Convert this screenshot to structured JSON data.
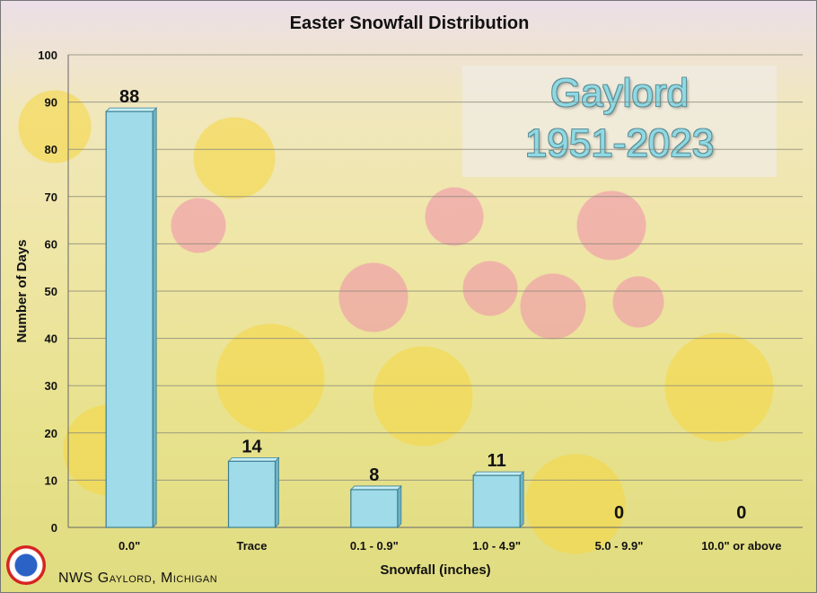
{
  "chart_data": {
    "type": "bar",
    "title": "Easter Snowfall Distribution",
    "xlabel": "Snowfall (inches)",
    "ylabel": "Number of Days",
    "categories": [
      "0.0\"",
      "Trace",
      "0.1 - 0.9\"",
      "1.0 - 4.9\"",
      "5.0 - 9.9\"",
      "10.0\" or above"
    ],
    "values": [
      88,
      14,
      8,
      11,
      0,
      0
    ],
    "ylim": [
      0,
      100
    ],
    "yticks": [
      0,
      10,
      20,
      30,
      40,
      50,
      60,
      70,
      80,
      90,
      100
    ],
    "grid": true,
    "bar_color": "#9fdbe9",
    "bar_edge_color": "#3c7f8f"
  },
  "station": {
    "line1": "Gaylord",
    "line2": "1951-2023"
  },
  "footer": {
    "text": "NWS Gaylord, Michigan",
    "logo_icon": "nws-logo-icon"
  }
}
